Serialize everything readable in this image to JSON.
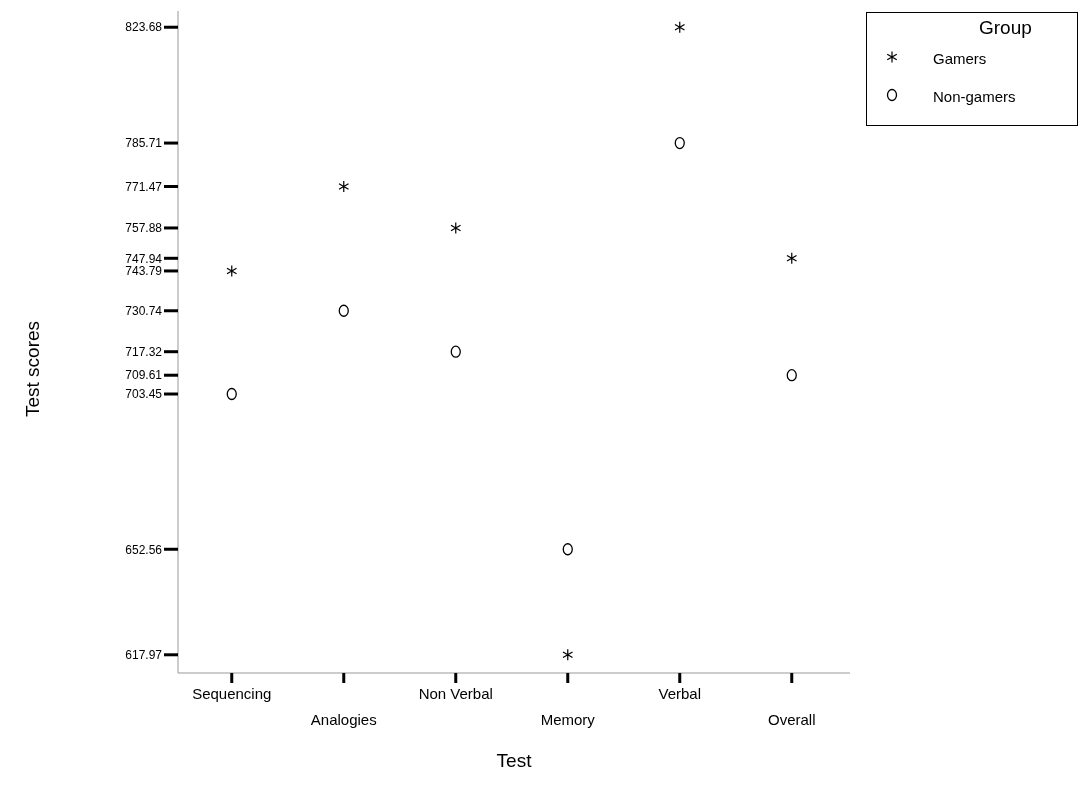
{
  "chart_data": {
    "type": "scatter",
    "xlabel": "Test",
    "ylabel": "Test scores",
    "legend_title": "Group",
    "legend": "top right",
    "categories": [
      "Sequencing",
      "Analogies",
      "Non Verbal",
      "Memory",
      "Verbal",
      "Overall"
    ],
    "ylim": [
      612,
      829
    ],
    "yticks": [
      617.97,
      652.56,
      703.45,
      709.61,
      717.32,
      730.74,
      743.79,
      747.94,
      757.88,
      771.47,
      785.71,
      823.68
    ],
    "series": [
      {
        "name": "Gamers",
        "color": "#000000",
        "marker": "cross",
        "values": [
          743.79,
          771.47,
          757.88,
          617.97,
          823.68,
          747.94
        ]
      },
      {
        "name": "Non-gamers",
        "color": "#000000",
        "marker": "circle",
        "values": [
          703.45,
          730.74,
          717.32,
          652.56,
          785.71,
          709.61
        ]
      }
    ]
  }
}
